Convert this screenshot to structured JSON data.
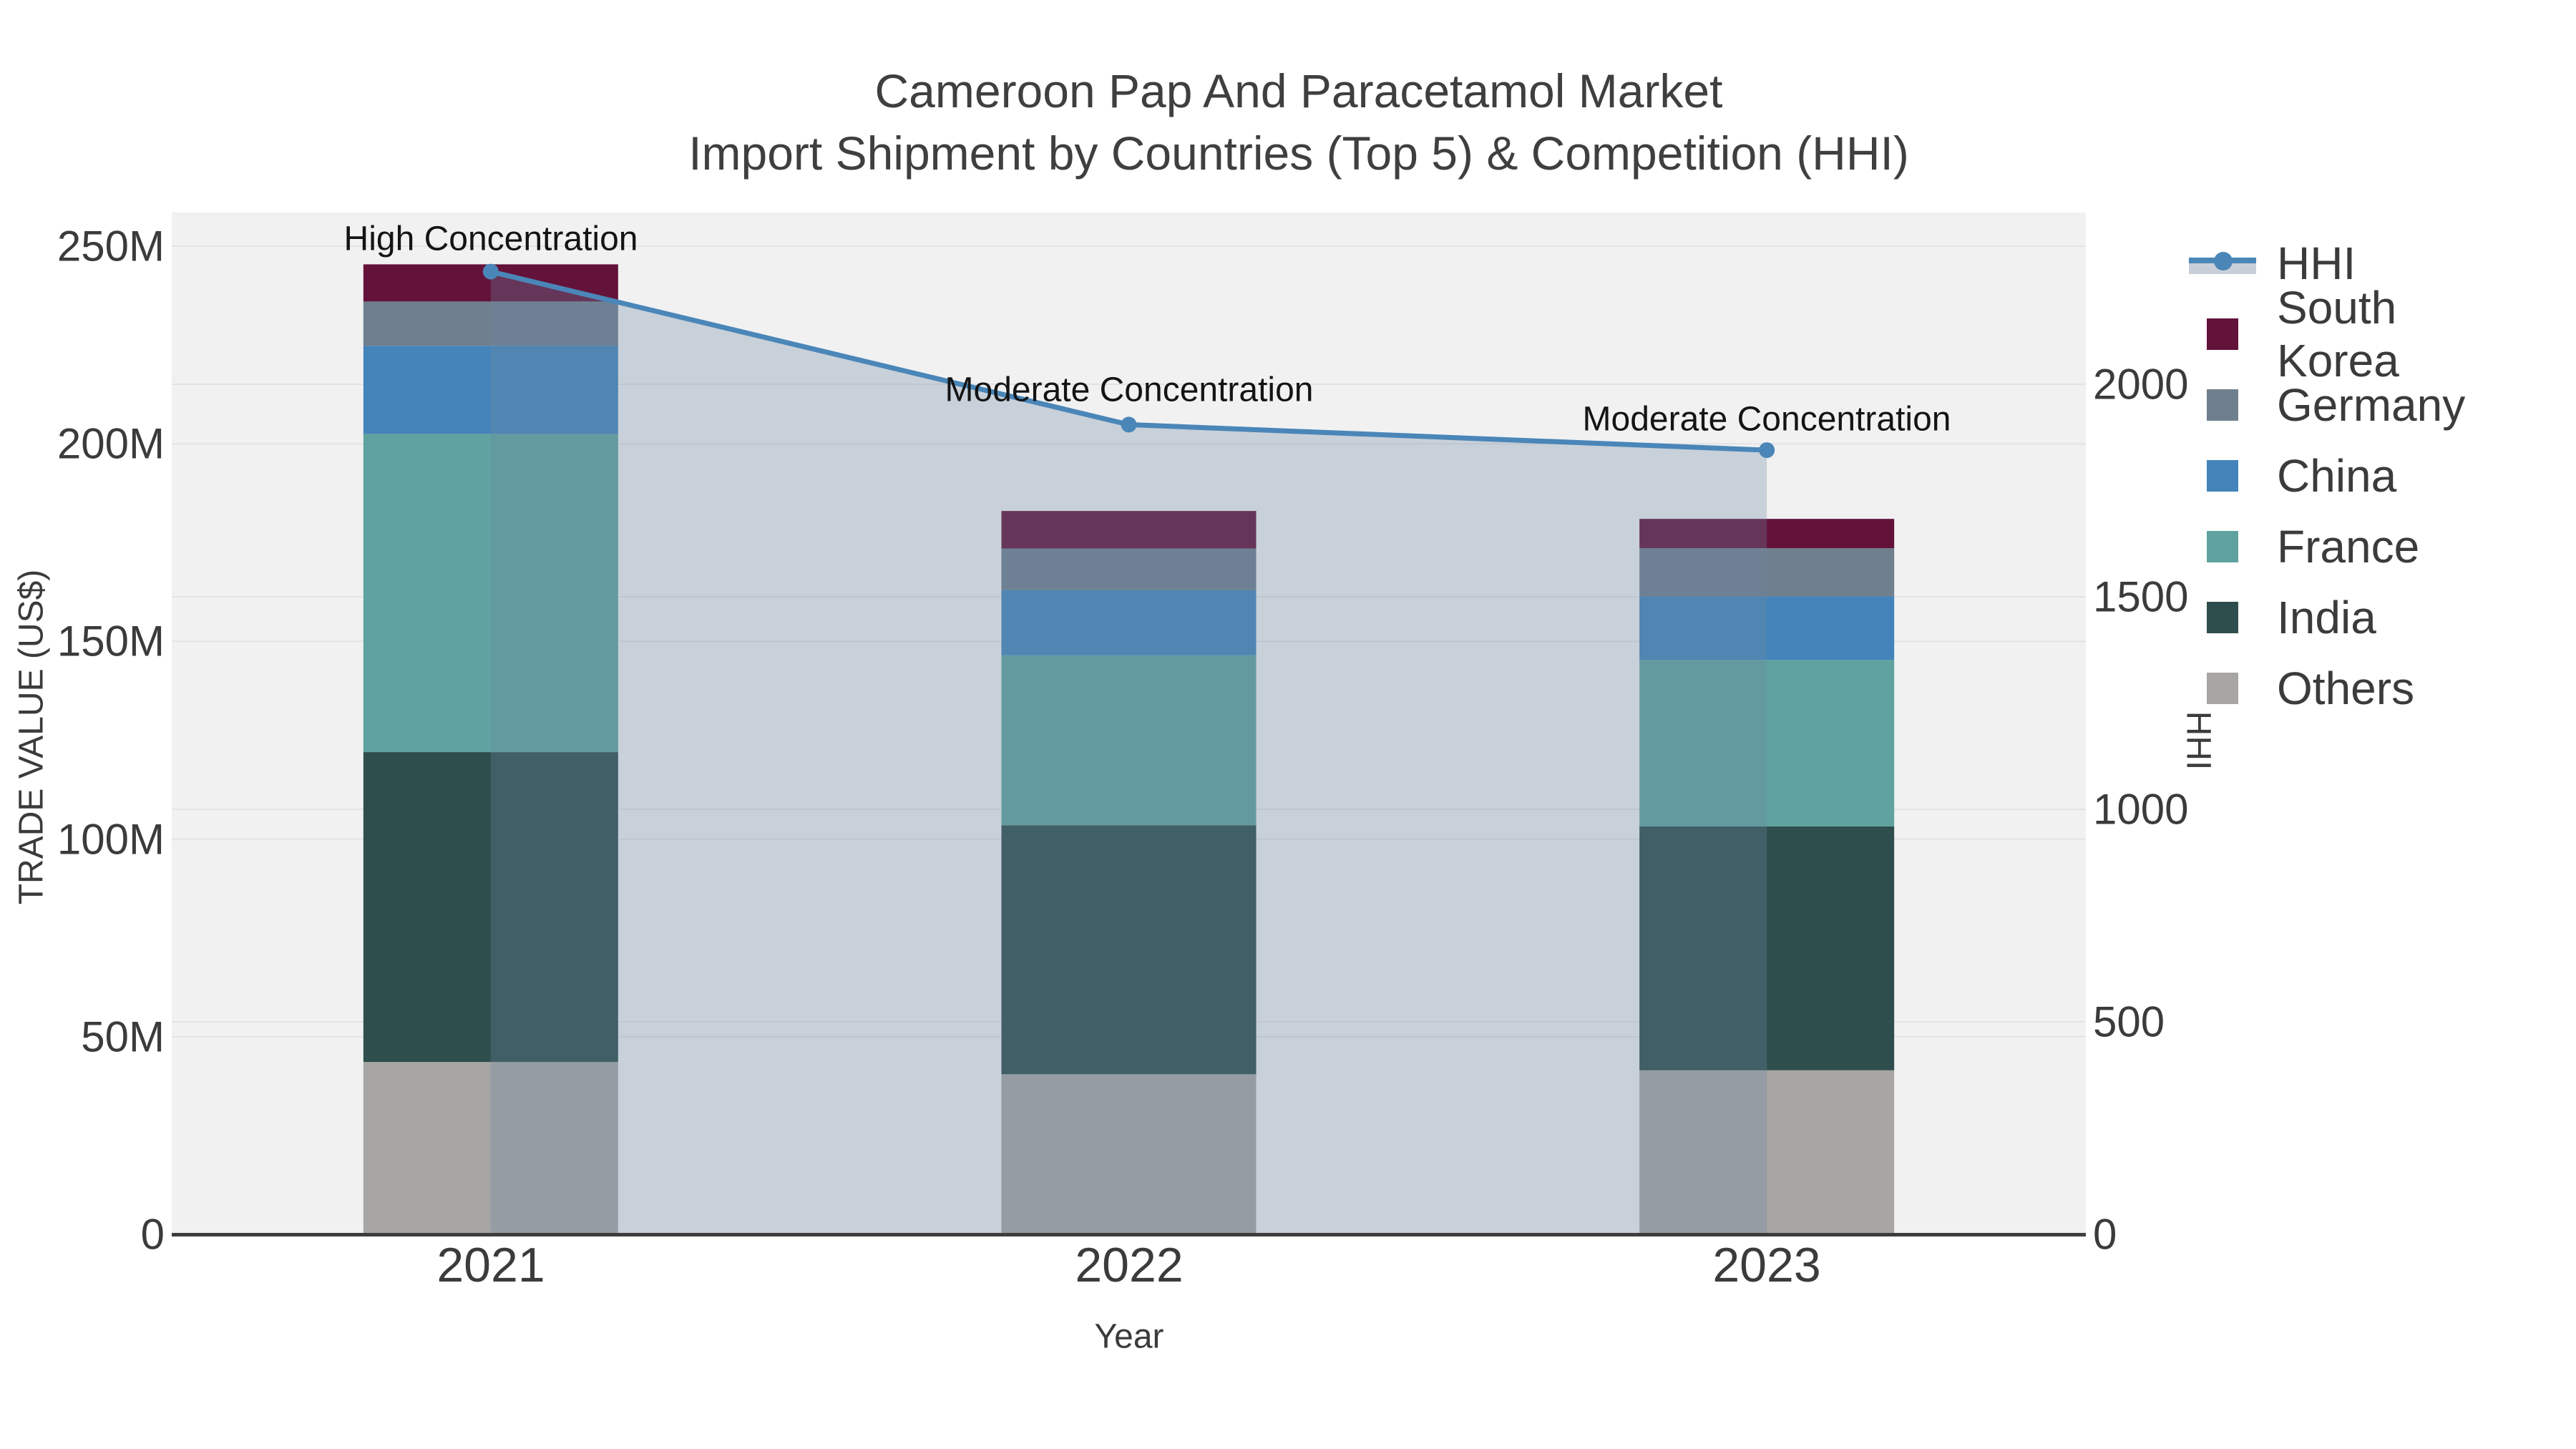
{
  "title": {
    "line1": "Cameroon Pap And Paracetamol Market",
    "line2": "Import Shipment by Countries (Top 5) & Competition (HHI)"
  },
  "legend": {
    "items": [
      "HHI",
      "South Korea",
      "Germany",
      "China",
      "France",
      "India",
      "Others"
    ]
  },
  "chart_data": {
    "type": "bar",
    "subtype": "stacked-bars-with-line-overlay",
    "categories": [
      "2021",
      "2022",
      "2023"
    ],
    "x_axis_title": "Year",
    "y_left": {
      "title": "TRADE VALUE (US$)",
      "unit": "million US$",
      "ticks": [
        0,
        50,
        100,
        150,
        200,
        250
      ],
      "tick_labels": [
        "0",
        "50M",
        "100M",
        "150M",
        "200M",
        "250M"
      ],
      "range": [
        0,
        258.5
      ],
      "grid": true
    },
    "y_right": {
      "title": "HHI",
      "ticks": [
        0,
        500,
        1000,
        1500,
        2000
      ],
      "tick_labels": [
        "0",
        "500",
        "1000",
        "1500",
        "2000"
      ],
      "range": [
        0,
        2400
      ],
      "grid": true
    },
    "series": [
      {
        "name": "South Korea",
        "color": "#63123a",
        "values": [
          9.4,
          9.5,
          7.4
        ]
      },
      {
        "name": "Germany",
        "color": "#6f7f8e",
        "values": [
          11.2,
          10.5,
          12.2
        ]
      },
      {
        "name": "China",
        "color": "#4584ba",
        "values": [
          22.3,
          16.5,
          16.1
        ]
      },
      {
        "name": "France",
        "color": "#5fa2a0",
        "values": [
          80.5,
          43.0,
          42.1
        ]
      },
      {
        "name": "India",
        "color": "#2e4e4d",
        "values": [
          78.4,
          63.0,
          61.7
        ]
      },
      {
        "name": "Others",
        "color": "#a8a6a4",
        "values": [
          43.6,
          40.5,
          41.5
        ]
      }
    ],
    "stack_order_bottom_to_top": [
      "Others",
      "India",
      "France",
      "China",
      "Germany",
      "South Korea"
    ],
    "bar_totals": [
      245.4,
      183.0,
      181.0
    ],
    "hhi": {
      "name": "HHI",
      "color": "#4a86b8",
      "area_fill": "rgba(110,134,163,0.31)",
      "legend_band": "#c9cfd9",
      "values": [
        2265,
        1905,
        1845
      ]
    },
    "annotations": [
      "High Concentration",
      "Moderate Concentration",
      "Moderate Concentration"
    ],
    "legend_position": "right",
    "plot_background": "#f1f1f2",
    "gridline_color": "#e3e3e6",
    "axis_line_color": "#3d3d3d"
  }
}
